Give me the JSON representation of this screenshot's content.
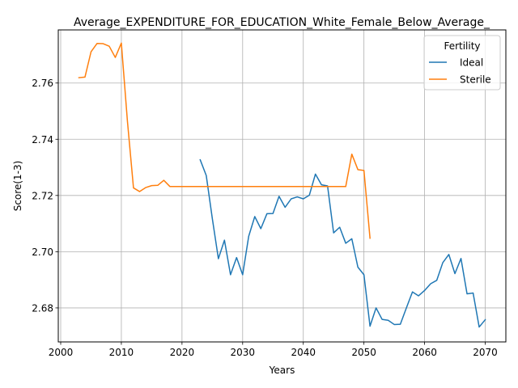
{
  "chart_data": {
    "type": "line",
    "title": "Average_EXPENDITURE_FOR_EDUCATION_White_Female_Below_Average_",
    "xlabel": "Years",
    "ylabel": "Score(1-3)",
    "xlim": [
      1999.6,
      2073.4
    ],
    "ylim": [
      2.6679,
      2.7789
    ],
    "xticks": [
      2000,
      2010,
      2020,
      2030,
      2040,
      2050,
      2060,
      2070
    ],
    "yticks": [
      2.68,
      2.7,
      2.72,
      2.74,
      2.76
    ],
    "grid": true,
    "legend": {
      "title": "Fertility",
      "position": "top-right"
    },
    "series": [
      {
        "name": "Ideal",
        "color": "#1f77b4",
        "x": [
          2023,
          2024,
          2025,
          2026,
          2027,
          2028,
          2029,
          2030,
          2031,
          2032,
          2033,
          2034,
          2035,
          2036,
          2037,
          2038,
          2039,
          2040,
          2041,
          2042,
          2043,
          2044,
          2045,
          2046,
          2047,
          2048,
          2049,
          2050,
          2051,
          2052,
          2053,
          2054,
          2055,
          2056,
          2057,
          2058,
          2059,
          2060,
          2061,
          2062,
          2063,
          2064,
          2065,
          2066,
          2067,
          2068,
          2069,
          2070
        ],
        "y": [
          2.7327,
          2.7271,
          2.7118,
          2.6975,
          2.7041,
          2.6918,
          2.6979,
          2.6918,
          2.7055,
          2.7125,
          2.7082,
          2.7135,
          2.7136,
          2.7197,
          2.7158,
          2.7188,
          2.7195,
          2.7188,
          2.7201,
          2.7276,
          2.7238,
          2.7234,
          2.7067,
          2.7087,
          2.703,
          2.7046,
          2.6945,
          2.6918,
          2.6735,
          2.68,
          2.6759,
          2.6756,
          2.6741,
          2.6742,
          2.68,
          2.6857,
          2.6843,
          2.6862,
          2.6886,
          2.6898,
          2.6961,
          2.699,
          2.6922,
          2.6976,
          2.685,
          2.6853,
          2.6732,
          2.6758
        ]
      },
      {
        "name": "Sterile",
        "color": "#ff7f0e",
        "x": [
          2003,
          2004,
          2005,
          2006,
          2007,
          2008,
          2009,
          2010,
          2011,
          2012,
          2013,
          2014,
          2015,
          2016,
          2017,
          2018,
          2019,
          2020,
          2021,
          2022,
          2023,
          2024,
          2025,
          2026,
          2027,
          2028,
          2029,
          2030,
          2031,
          2032,
          2033,
          2034,
          2035,
          2036,
          2037,
          2038,
          2039,
          2040,
          2041,
          2042,
          2043,
          2044,
          2045,
          2046,
          2047,
          2048,
          2049,
          2050,
          2051
        ],
        "y": [
          2.7619,
          2.7621,
          2.7711,
          2.7741,
          2.774,
          2.7731,
          2.7691,
          2.7742,
          2.7465,
          2.7227,
          2.7214,
          2.7228,
          2.7235,
          2.7236,
          2.7254,
          2.7232,
          2.7232,
          2.7232,
          2.7232,
          2.7232,
          2.7232,
          2.7232,
          2.7232,
          2.7232,
          2.7232,
          2.7232,
          2.7232,
          2.7232,
          2.7232,
          2.7232,
          2.7232,
          2.7232,
          2.7232,
          2.7232,
          2.7232,
          2.7232,
          2.7232,
          2.7232,
          2.7232,
          2.7232,
          2.7232,
          2.7232,
          2.7232,
          2.7232,
          2.7232,
          2.7347,
          2.7292,
          2.7289,
          2.7048
        ]
      }
    ]
  }
}
